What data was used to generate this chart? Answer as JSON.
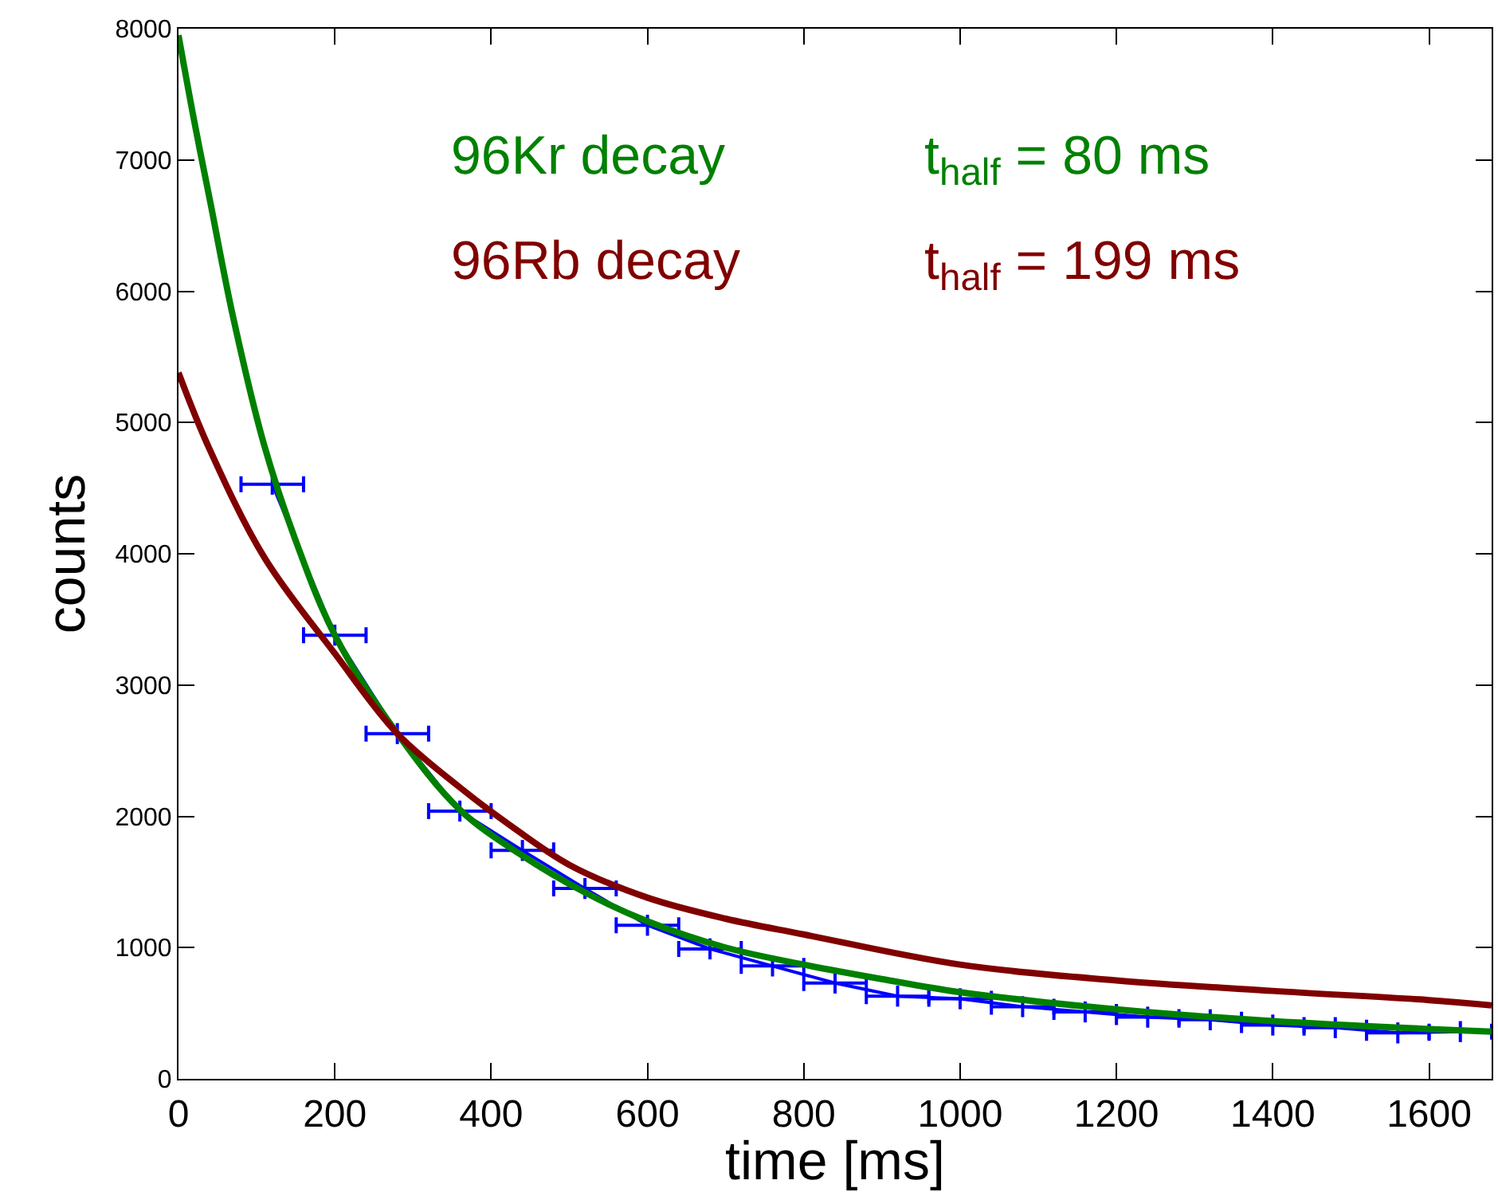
{
  "chart_data": {
    "type": "line",
    "xlabel": "time [ms]",
    "ylabel": "counts",
    "xlim": [
      0,
      1680
    ],
    "xticks": [
      0,
      200,
      400,
      600,
      800,
      1000,
      1200,
      1400,
      1600
    ],
    "ylim": [
      0,
      8000
    ],
    "yticks": [
      0,
      1000,
      2000,
      3000,
      4000,
      5000,
      6000,
      7000,
      8000
    ],
    "legend": false,
    "marker": "none",
    "line_style": "solid",
    "series": [
      {
        "color": "#0000ff",
        "x": [
          120,
          200,
          280,
          360,
          440,
          520,
          600,
          680,
          760,
          840,
          920,
          1000,
          1080,
          1160,
          1240,
          1320,
          1400,
          1480,
          1560,
          1640
        ],
        "values": [
          4530,
          3380,
          2630,
          2040,
          1740,
          1450,
          1170,
          990,
          860,
          730,
          630,
          610,
          550,
          510,
          470,
          450,
          410,
          390,
          350,
          360
        ],
        "xerrors": [
          40,
          40,
          40,
          40,
          40,
          40,
          40,
          40,
          40,
          40,
          40,
          40,
          40,
          40,
          40,
          40,
          40,
          40,
          40,
          40
        ],
        "errors": [
          80,
          80,
          80,
          80,
          80,
          80,
          80,
          80,
          80,
          80,
          80,
          80,
          80,
          80,
          80,
          80,
          80,
          80,
          80,
          80
        ]
      },
      {
        "name": "96Kr decay",
        "color": "#008000",
        "x": [
          0,
          20,
          40,
          70,
          110,
          150,
          200,
          280,
          360,
          440,
          520,
          600,
          700,
          800,
          900,
          1000,
          1200,
          1400,
          1600,
          1680
        ],
        "values": [
          7950,
          7300,
          6700,
          5800,
          4820,
          4100,
          3380,
          2630,
          2050,
          1700,
          1420,
          1200,
          1000,
          870,
          760,
          660,
          530,
          440,
          380,
          360
        ]
      },
      {
        "name": "96Rb decay",
        "color": "#800000",
        "x": [
          0,
          38,
          110,
          200,
          280,
          360,
          420,
          500,
          600,
          700,
          800,
          1000,
          1200,
          1400,
          1600,
          1680
        ],
        "values": [
          5380,
          4820,
          3970,
          3240,
          2630,
          2220,
          1950,
          1630,
          1380,
          1220,
          1100,
          870,
          750,
          670,
          600,
          560
        ]
      }
    ],
    "annotations": [
      "t$_{half}$ = 80 ms",
      "t$_{half}$ = 199 ms"
    ]
  }
}
